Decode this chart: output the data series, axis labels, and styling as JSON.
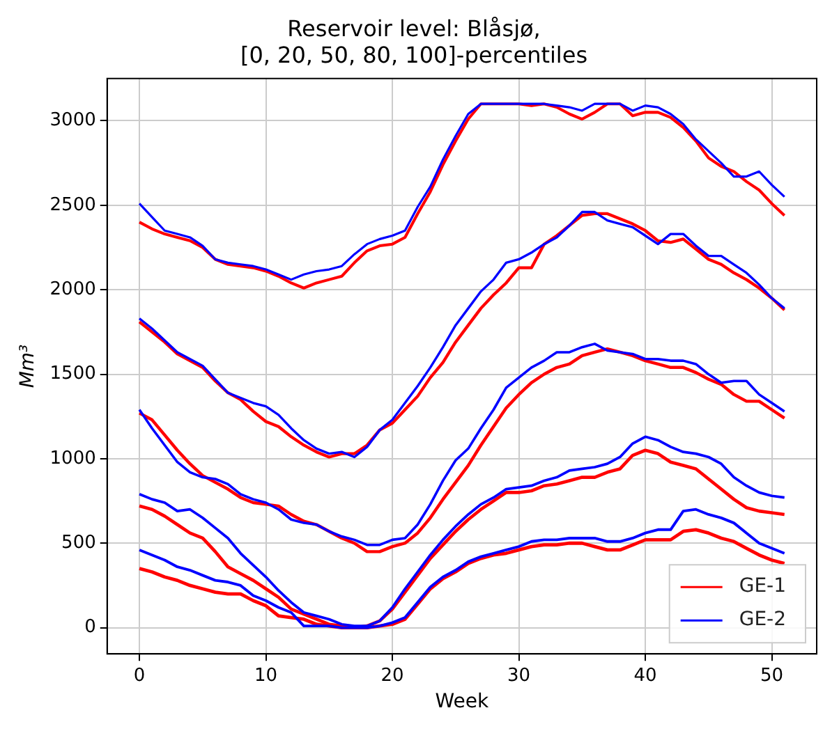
{
  "chart_data": {
    "type": "line",
    "title": "Reservoir level: Blåsjø,\n[0, 20, 50, 80, 100]-percentiles",
    "xlabel": "Week",
    "ylabel": "Mm³",
    "x": [
      0,
      1,
      2,
      3,
      4,
      5,
      6,
      7,
      8,
      9,
      10,
      11,
      12,
      13,
      14,
      15,
      16,
      17,
      18,
      19,
      20,
      21,
      22,
      23,
      24,
      25,
      26,
      27,
      28,
      29,
      30,
      31,
      32,
      33,
      34,
      35,
      36,
      37,
      38,
      39,
      40,
      41,
      42,
      43,
      44,
      45,
      46,
      47,
      48,
      49,
      50,
      51
    ],
    "series": [
      {
        "name": "GE-1",
        "color": "#ff0000",
        "values": [
          350,
          330,
          300,
          280,
          250,
          230,
          210,
          200,
          200,
          160,
          130,
          70,
          60,
          50,
          20,
          10,
          0,
          0,
          0,
          10,
          20,
          50,
          140,
          230,
          290,
          330,
          380,
          410,
          430,
          440,
          460,
          480,
          490,
          490,
          500,
          500,
          480,
          460,
          460,
          490,
          520,
          520,
          520,
          570,
          580,
          560,
          530,
          510,
          470,
          430,
          400,
          380
        ]
      },
      {
        "color": "#ff0000",
        "values": [
          720,
          700,
          660,
          610,
          560,
          530,
          450,
          360,
          320,
          280,
          230,
          180,
          110,
          80,
          50,
          20,
          10,
          0,
          10,
          40,
          110,
          210,
          310,
          410,
          490,
          570,
          640,
          700,
          750,
          800,
          800,
          810,
          840,
          850,
          870,
          890,
          890,
          920,
          940,
          1020,
          1050,
          1030,
          980,
          960,
          940,
          880,
          820,
          760,
          710,
          690,
          680,
          670
        ]
      },
      {
        "color": "#ff0000",
        "values": [
          1270,
          1230,
          1140,
          1050,
          970,
          900,
          860,
          820,
          770,
          740,
          730,
          720,
          670,
          630,
          610,
          570,
          530,
          500,
          450,
          450,
          480,
          500,
          560,
          650,
          760,
          860,
          960,
          1080,
          1190,
          1300,
          1380,
          1450,
          1500,
          1540,
          1560,
          1610,
          1630,
          1650,
          1630,
          1610,
          1580,
          1560,
          1540,
          1540,
          1510,
          1470,
          1440,
          1380,
          1340,
          1340,
          1290,
          1240
        ]
      },
      {
        "color": "#ff0000",
        "values": [
          1810,
          1750,
          1690,
          1620,
          1580,
          1540,
          1460,
          1390,
          1350,
          1280,
          1220,
          1190,
          1130,
          1080,
          1040,
          1010,
          1030,
          1030,
          1080,
          1170,
          1210,
          1290,
          1370,
          1480,
          1570,
          1690,
          1790,
          1890,
          1970,
          2040,
          2130,
          2130,
          2270,
          2320,
          2380,
          2440,
          2450,
          2450,
          2420,
          2390,
          2350,
          2290,
          2280,
          2300,
          2240,
          2180,
          2150,
          2100,
          2060,
          2010,
          1950,
          1880
        ]
      },
      {
        "color": "#ff0000",
        "values": [
          2400,
          2360,
          2330,
          2310,
          2290,
          2250,
          2180,
          2150,
          2140,
          2130,
          2110,
          2080,
          2040,
          2010,
          2040,
          2060,
          2080,
          2160,
          2230,
          2260,
          2270,
          2310,
          2450,
          2580,
          2740,
          2880,
          3010,
          3100,
          3100,
          3100,
          3100,
          3090,
          3100,
          3080,
          3040,
          3010,
          3050,
          3100,
          3100,
          3030,
          3050,
          3050,
          3020,
          2960,
          2880,
          2780,
          2730,
          2700,
          2640,
          2590,
          2510,
          2440
        ]
      },
      {
        "name": "GE-2",
        "color": "#0000ff",
        "values": [
          460,
          430,
          400,
          360,
          340,
          310,
          280,
          270,
          250,
          190,
          160,
          120,
          90,
          10,
          10,
          10,
          0,
          0,
          0,
          10,
          30,
          60,
          150,
          240,
          300,
          340,
          390,
          420,
          440,
          460,
          480,
          510,
          520,
          520,
          530,
          530,
          530,
          510,
          510,
          530,
          560,
          580,
          580,
          690,
          700,
          670,
          650,
          620,
          560,
          500,
          470,
          440
        ]
      },
      {
        "color": "#0000ff",
        "values": [
          790,
          760,
          740,
          690,
          700,
          650,
          590,
          530,
          440,
          370,
          300,
          220,
          150,
          90,
          70,
          50,
          20,
          10,
          10,
          40,
          120,
          230,
          330,
          430,
          520,
          600,
          670,
          730,
          770,
          820,
          830,
          840,
          870,
          890,
          930,
          940,
          950,
          970,
          1010,
          1090,
          1130,
          1110,
          1070,
          1040,
          1030,
          1010,
          970,
          890,
          840,
          800,
          780,
          770
        ]
      },
      {
        "color": "#0000ff",
        "values": [
          1290,
          1180,
          1080,
          980,
          920,
          890,
          880,
          850,
          790,
          760,
          740,
          700,
          640,
          620,
          610,
          570,
          540,
          520,
          490,
          490,
          520,
          530,
          610,
          730,
          870,
          990,
          1060,
          1180,
          1290,
          1420,
          1480,
          1540,
          1580,
          1630,
          1630,
          1660,
          1680,
          1640,
          1630,
          1620,
          1590,
          1590,
          1580,
          1580,
          1560,
          1500,
          1450,
          1460,
          1460,
          1380,
          1330,
          1280
        ]
      },
      {
        "color": "#0000ff",
        "values": [
          1830,
          1770,
          1700,
          1630,
          1590,
          1550,
          1470,
          1390,
          1360,
          1330,
          1310,
          1260,
          1180,
          1110,
          1060,
          1030,
          1040,
          1010,
          1070,
          1170,
          1230,
          1330,
          1430,
          1540,
          1660,
          1790,
          1890,
          1990,
          2060,
          2160,
          2180,
          2220,
          2270,
          2310,
          2380,
          2460,
          2460,
          2410,
          2390,
          2370,
          2320,
          2270,
          2330,
          2330,
          2260,
          2200,
          2200,
          2150,
          2100,
          2030,
          1950,
          1890
        ]
      },
      {
        "color": "#0000ff",
        "values": [
          2510,
          2430,
          2350,
          2330,
          2310,
          2260,
          2180,
          2160,
          2150,
          2140,
          2120,
          2090,
          2060,
          2090,
          2110,
          2120,
          2140,
          2210,
          2270,
          2300,
          2320,
          2350,
          2490,
          2610,
          2770,
          2910,
          3040,
          3100,
          3100,
          3100,
          3100,
          3100,
          3100,
          3090,
          3080,
          3060,
          3100,
          3100,
          3100,
          3060,
          3090,
          3080,
          3040,
          2980,
          2890,
          2820,
          2750,
          2670,
          2670,
          2700,
          2620,
          2550
        ]
      }
    ],
    "xlim": [
      -2.55,
      53.55
    ],
    "xticks": [
      0,
      10,
      20,
      30,
      40,
      50
    ],
    "ylim": [
      -155,
      3250
    ],
    "yticks": [
      0,
      500,
      1000,
      1500,
      2000,
      2500,
      3000
    ],
    "grid": true,
    "legend": "bottom right",
    "marker": "none",
    "line_style": "solid"
  }
}
